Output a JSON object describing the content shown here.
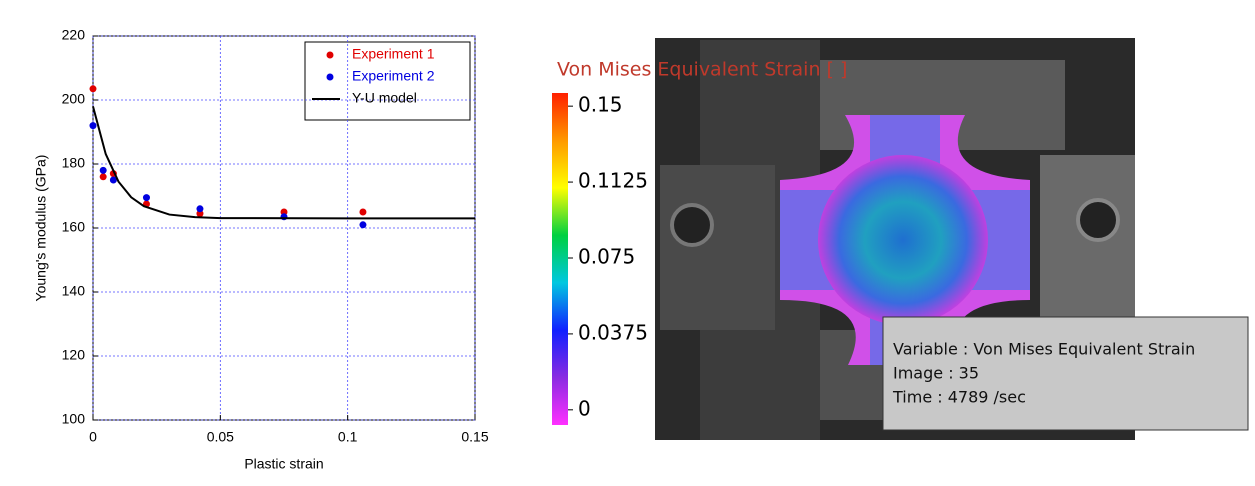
{
  "chart_data": [
    {
      "type": "scatter",
      "xlabel": "Plastic strain",
      "ylabel": "Young's modulus (GPa)",
      "xlim": [
        0,
        0.15
      ],
      "ylim": [
        100,
        220
      ],
      "xticks": [
        0,
        0.05,
        0.1,
        0.15
      ],
      "yticks": [
        100,
        120,
        140,
        160,
        180,
        200,
        220
      ],
      "grid": true,
      "legend": "top-right",
      "series": [
        {
          "name": "Experiment 1",
          "color": "#e00000",
          "mode": "markers",
          "x": [
            0,
            0.004,
            0.008,
            0.021,
            0.042,
            0.075,
            0.106
          ],
          "values": [
            203.5,
            176,
            177,
            167.5,
            164.5,
            165,
            165
          ]
        },
        {
          "name": "Experiment 2",
          "color": "#0000e0",
          "mode": "markers",
          "x": [
            0,
            0.004,
            0.008,
            0.021,
            0.042,
            0.075,
            0.106
          ],
          "values": [
            192,
            178,
            175,
            169.5,
            166,
            163.5,
            161
          ]
        },
        {
          "name": "Y-U model",
          "color": "#000000",
          "mode": "line",
          "x": [
            0,
            0.005,
            0.01,
            0.015,
            0.02,
            0.03,
            0.04,
            0.05,
            0.1,
            0.15
          ],
          "values": [
            198,
            183.1,
            174.5,
            169.6,
            166.8,
            164.2,
            163.4,
            163.1,
            163,
            163
          ]
        }
      ]
    },
    {
      "type": "colorbar",
      "title": "Von Mises Equivalent Strain [ ]",
      "clim": [
        -0.0075,
        0.1565
      ],
      "ticks": [
        0.15,
        0.1125,
        0.075,
        0.0375,
        0
      ],
      "colors": [
        "#ff30ff",
        "#8a2be2",
        "#1020ff",
        "#00c8e0",
        "#00d040",
        "#ffff00",
        "#ff9900",
        "#ff2000"
      ],
      "annotations": [
        "Variable : Von Mises Equivalent Strain",
        "Image : 35",
        "Time : 4789 /sec"
      ]
    }
  ]
}
